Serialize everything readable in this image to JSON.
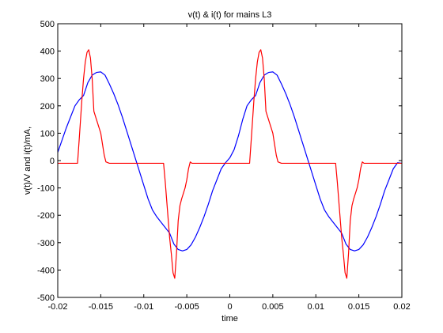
{
  "chart_data": {
    "type": "line",
    "title": "v(t) & i(t) for   mains L3",
    "xlabel": "time",
    "ylabel": "v(t)/V  and  i(t)/mA,",
    "xlim": [
      -0.02,
      0.02
    ],
    "ylim": [
      -500,
      500
    ],
    "xticks": [
      -0.02,
      -0.015,
      -0.01,
      -0.005,
      0,
      0.005,
      0.01,
      0.015,
      0.02
    ],
    "yticks": [
      -500,
      -400,
      -300,
      -200,
      -100,
      0,
      100,
      200,
      300,
      400,
      500
    ],
    "xtick_labels": [
      "-0.02",
      "-0.015",
      "-0.01",
      "-0.005",
      "0",
      "0.005",
      "0.01",
      "0.015",
      "0.02"
    ],
    "ytick_labels": [
      "-500",
      "-400",
      "-300",
      "-200",
      "-100",
      "0",
      "100",
      "200",
      "300",
      "400",
      "500"
    ],
    "grid": false,
    "series": [
      {
        "color": "#0000ff",
        "x": [
          -0.02,
          -0.0195,
          -0.019,
          -0.0185,
          -0.018,
          -0.0175,
          -0.017,
          -0.0165,
          -0.016,
          -0.0155,
          -0.015,
          -0.0145,
          -0.014,
          -0.0135,
          -0.013,
          -0.0125,
          -0.012,
          -0.0115,
          -0.011,
          -0.0105,
          -0.01,
          -0.0095,
          -0.009,
          -0.0085,
          -0.008,
          -0.0075,
          -0.007,
          -0.0065,
          -0.006,
          -0.0055,
          -0.005,
          -0.0045,
          -0.004,
          -0.0035,
          -0.003,
          -0.0025,
          -0.002,
          -0.0015,
          -0.001,
          -0.0005,
          0.0,
          0.0005,
          0.001,
          0.0015,
          0.002,
          0.0025,
          0.003,
          0.0035,
          0.004,
          0.0045,
          0.005,
          0.0055,
          0.006,
          0.0065,
          0.007,
          0.0075,
          0.008,
          0.0085,
          0.009,
          0.0095,
          0.01,
          0.0105,
          0.011,
          0.0115,
          0.012,
          0.0125,
          0.013,
          0.0135,
          0.014,
          0.0145,
          0.015,
          0.0155,
          0.016,
          0.0165,
          0.017,
          0.0175,
          0.018,
          0.0185,
          0.019,
          0.0195,
          0.02
        ],
        "values": [
          30,
          75,
          120,
          160,
          200,
          222,
          238,
          285,
          312,
          322,
          324,
          312,
          280,
          245,
          205,
          160,
          110,
          60,
          10,
          -40,
          -90,
          -140,
          -180,
          -205,
          -225,
          -245,
          -265,
          -305,
          -325,
          -330,
          -325,
          -308,
          -280,
          -245,
          -205,
          -160,
          -110,
          -70,
          -30,
          -8,
          10,
          40,
          90,
          150,
          200,
          222,
          238,
          285,
          312,
          322,
          324,
          312,
          280,
          245,
          205,
          160,
          110,
          60,
          10,
          -40,
          -90,
          -140,
          -180,
          -205,
          -225,
          -245,
          -265,
          -305,
          -325,
          -330,
          -325,
          -308,
          -280,
          -245,
          -205,
          -160,
          -110,
          -70,
          -30,
          -8,
          -10
        ]
      },
      {
        "color": "#ff0000",
        "x": [
          -0.02,
          -0.018,
          -0.0177,
          -0.0175,
          -0.0172,
          -0.017,
          -0.0168,
          -0.0166,
          -0.0164,
          -0.0162,
          -0.016,
          -0.0158,
          -0.0156,
          -0.0154,
          -0.0152,
          -0.015,
          -0.0148,
          -0.0146,
          -0.0144,
          -0.014,
          -0.012,
          -0.01,
          -0.008,
          -0.0077,
          -0.0075,
          -0.0072,
          -0.007,
          -0.0068,
          -0.0066,
          -0.0064,
          -0.0062,
          -0.006,
          -0.0058,
          -0.0056,
          -0.0054,
          -0.0052,
          -0.005,
          -0.0048,
          -0.0046,
          -0.0044,
          -0.004,
          -0.002,
          0.0,
          0.002,
          0.0023,
          0.0025,
          0.0028,
          0.003,
          0.0032,
          0.0034,
          0.0036,
          0.0038,
          0.004,
          0.0042,
          0.0044,
          0.0046,
          0.0048,
          0.005,
          0.0052,
          0.0054,
          0.0056,
          0.006,
          0.008,
          0.01,
          0.012,
          0.0123,
          0.0125,
          0.0128,
          0.013,
          0.0132,
          0.0134,
          0.0136,
          0.0138,
          0.014,
          0.0142,
          0.0144,
          0.0146,
          0.0148,
          0.015,
          0.0152,
          0.0154,
          0.0156,
          0.016,
          0.018,
          0.02
        ],
        "values": [
          -10,
          -10,
          -10,
          80,
          220,
          300,
          360,
          395,
          405,
          375,
          300,
          180,
          160,
          140,
          120,
          100,
          60,
          20,
          -5,
          -10,
          -10,
          -10,
          -10,
          -10,
          -80,
          -200,
          -280,
          -340,
          -410,
          -430,
          -340,
          -220,
          -165,
          -140,
          -120,
          -100,
          -70,
          -30,
          -5,
          -10,
          -10,
          -10,
          -10,
          -10,
          -10,
          80,
          220,
          300,
          360,
          395,
          405,
          375,
          300,
          180,
          160,
          140,
          120,
          100,
          60,
          20,
          -5,
          -10,
          -10,
          -10,
          -10,
          -10,
          -80,
          -200,
          -280,
          -340,
          -410,
          -430,
          -340,
          -220,
          -165,
          -140,
          -120,
          -100,
          -70,
          -30,
          -5,
          -10,
          -10,
          -10,
          -10
        ]
      }
    ]
  }
}
